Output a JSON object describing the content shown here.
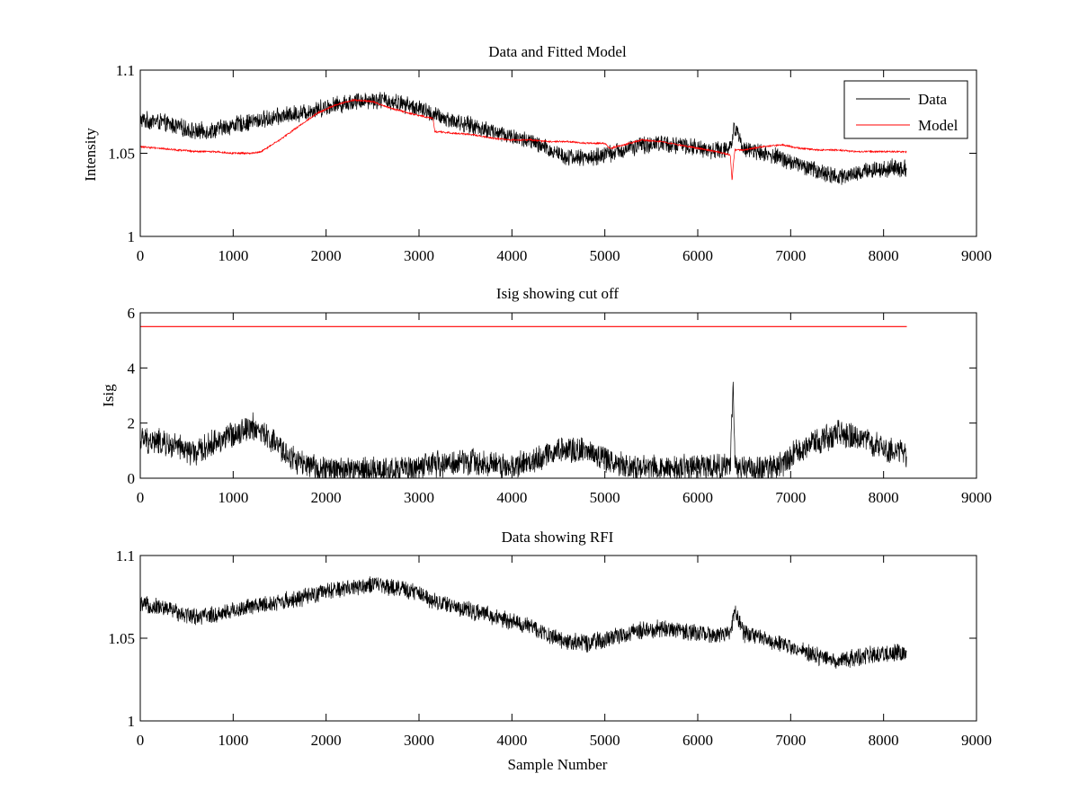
{
  "figure": {
    "xlabel": "Sample Number",
    "colors": {
      "data": "#000000",
      "model": "#ff0000",
      "axis": "#000000",
      "background": "#ffffff"
    }
  },
  "chart_data": [
    {
      "type": "line",
      "title": "Data and Fitted Model",
      "xlabel": "",
      "ylabel": "Intensity",
      "xlim": [
        0,
        9000
      ],
      "ylim": [
        1,
        1.1
      ],
      "xticks": [
        "0",
        "1000",
        "2000",
        "3000",
        "4000",
        "5000",
        "6000",
        "7000",
        "8000",
        "9000"
      ],
      "yticks": [
        "1",
        "1.05",
        "1.1"
      ],
      "grid": false,
      "legend": {
        "placement": "top-right",
        "entries": [
          "Data",
          "Model"
        ]
      },
      "series": [
        {
          "name": "Data",
          "color": "#000000",
          "noise_amplitude": 0.006,
          "x": [
            0,
            200,
            400,
            600,
            800,
            1000,
            1200,
            1400,
            1600,
            1800,
            2000,
            2200,
            2400,
            2600,
            2800,
            3000,
            3200,
            3400,
            3600,
            3800,
            4000,
            4200,
            4400,
            4600,
            4800,
            5000,
            5200,
            5400,
            5600,
            5800,
            6000,
            6200,
            6350,
            6400,
            6500,
            6700,
            6900,
            7100,
            7300,
            7500,
            7700,
            7900,
            8100,
            8250
          ],
          "y": [
            1.07,
            1.069,
            1.066,
            1.063,
            1.064,
            1.067,
            1.069,
            1.071,
            1.073,
            1.075,
            1.078,
            1.08,
            1.082,
            1.082,
            1.08,
            1.077,
            1.072,
            1.069,
            1.066,
            1.063,
            1.06,
            1.057,
            1.052,
            1.048,
            1.047,
            1.049,
            1.052,
            1.055,
            1.056,
            1.055,
            1.053,
            1.052,
            1.053,
            1.066,
            1.053,
            1.05,
            1.047,
            1.043,
            1.039,
            1.036,
            1.038,
            1.04,
            1.041,
            1.041
          ]
        },
        {
          "name": "Model",
          "color": "#ff0000",
          "noise_amplitude": 0.0006,
          "x": [
            0,
            200,
            400,
            600,
            800,
            1000,
            1200,
            1300,
            1500,
            1700,
            1900,
            2100,
            2300,
            2500,
            2700,
            2900,
            3150,
            3170,
            3400,
            3600,
            3800,
            4000,
            4200,
            4400,
            4600,
            4800,
            5000,
            5050,
            5200,
            5400,
            5600,
            5800,
            6000,
            6200,
            6350,
            6370,
            6380,
            6400,
            6500,
            6700,
            6900,
            7100,
            7300,
            7500,
            7700,
            7900,
            8100,
            8250
          ],
          "y": [
            1.054,
            1.053,
            1.052,
            1.051,
            1.051,
            1.05,
            1.05,
            1.051,
            1.058,
            1.066,
            1.074,
            1.079,
            1.082,
            1.081,
            1.077,
            1.074,
            1.071,
            1.063,
            1.062,
            1.061,
            1.059,
            1.058,
            1.058,
            1.057,
            1.057,
            1.056,
            1.056,
            1.053,
            1.055,
            1.058,
            1.057,
            1.055,
            1.053,
            1.051,
            1.049,
            1.033,
            1.042,
            1.052,
            1.052,
            1.054,
            1.055,
            1.053,
            1.052,
            1.052,
            1.051,
            1.051,
            1.051,
            1.051
          ]
        }
      ]
    },
    {
      "type": "line",
      "title": "Isig showing cut off",
      "xlabel": "",
      "ylabel": "Isig",
      "xlim": [
        0,
        9000
      ],
      "ylim": [
        0,
        6
      ],
      "xticks": [
        "0",
        "1000",
        "2000",
        "3000",
        "4000",
        "5000",
        "6000",
        "7000",
        "8000",
        "9000"
      ],
      "yticks": [
        "0",
        "2",
        "4",
        "6"
      ],
      "grid": false,
      "series": [
        {
          "color": "#000000",
          "noise_amplitude": 0.55,
          "clip_min": 0,
          "x": [
            0,
            200,
            400,
            600,
            800,
            1000,
            1200,
            1400,
            1600,
            1800,
            2000,
            2400,
            2800,
            3200,
            3600,
            4000,
            4200,
            4400,
            4600,
            4800,
            5000,
            5200,
            5400,
            5600,
            5800,
            6000,
            6200,
            6350,
            6380,
            6400,
            6420,
            6500,
            6700,
            6900,
            7100,
            7300,
            7500,
            7700,
            7900,
            8100,
            8250
          ],
          "y": [
            1.4,
            1.3,
            1.1,
            0.9,
            1.3,
            1.6,
            1.9,
            1.4,
            0.8,
            0.4,
            0.3,
            0.3,
            0.3,
            0.5,
            0.6,
            0.4,
            0.6,
            0.9,
            1.1,
            1.0,
            0.7,
            0.5,
            0.4,
            0.4,
            0.4,
            0.4,
            0.4,
            0.4,
            3.4,
            0.5,
            0.3,
            0.4,
            0.3,
            0.5,
            1.0,
            1.4,
            1.6,
            1.5,
            1.2,
            1.0,
            0.8
          ]
        },
        {
          "name": "cut off",
          "color": "#ff0000",
          "noise_amplitude": 0,
          "x": [
            0,
            8250
          ],
          "y": [
            5.5,
            5.5
          ]
        }
      ]
    },
    {
      "type": "line",
      "title": "Data showing RFI",
      "xlabel": "Sample Number",
      "ylabel": "",
      "xlim": [
        0,
        9000
      ],
      "ylim": [
        1,
        1.1
      ],
      "xticks": [
        "0",
        "1000",
        "2000",
        "3000",
        "4000",
        "5000",
        "6000",
        "7000",
        "8000",
        "9000"
      ],
      "yticks": [
        "1",
        "1.05",
        "1.1"
      ],
      "grid": false,
      "series": [
        {
          "color": "#000000",
          "noise_amplitude": 0.006,
          "x": [
            0,
            200,
            400,
            600,
            800,
            1000,
            1200,
            1400,
            1600,
            1800,
            2000,
            2200,
            2400,
            2600,
            2800,
            3000,
            3200,
            3400,
            3600,
            3800,
            4000,
            4200,
            4400,
            4600,
            4800,
            5000,
            5200,
            5400,
            5600,
            5800,
            6000,
            6200,
            6350,
            6400,
            6500,
            6700,
            6900,
            7100,
            7300,
            7500,
            7700,
            7900,
            8100,
            8250
          ],
          "y": [
            1.07,
            1.069,
            1.066,
            1.063,
            1.064,
            1.067,
            1.069,
            1.071,
            1.073,
            1.075,
            1.078,
            1.08,
            1.082,
            1.082,
            1.08,
            1.077,
            1.072,
            1.069,
            1.066,
            1.063,
            1.06,
            1.057,
            1.052,
            1.048,
            1.047,
            1.049,
            1.052,
            1.055,
            1.056,
            1.055,
            1.053,
            1.052,
            1.053,
            1.066,
            1.053,
            1.05,
            1.047,
            1.043,
            1.039,
            1.036,
            1.038,
            1.04,
            1.041,
            1.041
          ]
        }
      ]
    }
  ]
}
